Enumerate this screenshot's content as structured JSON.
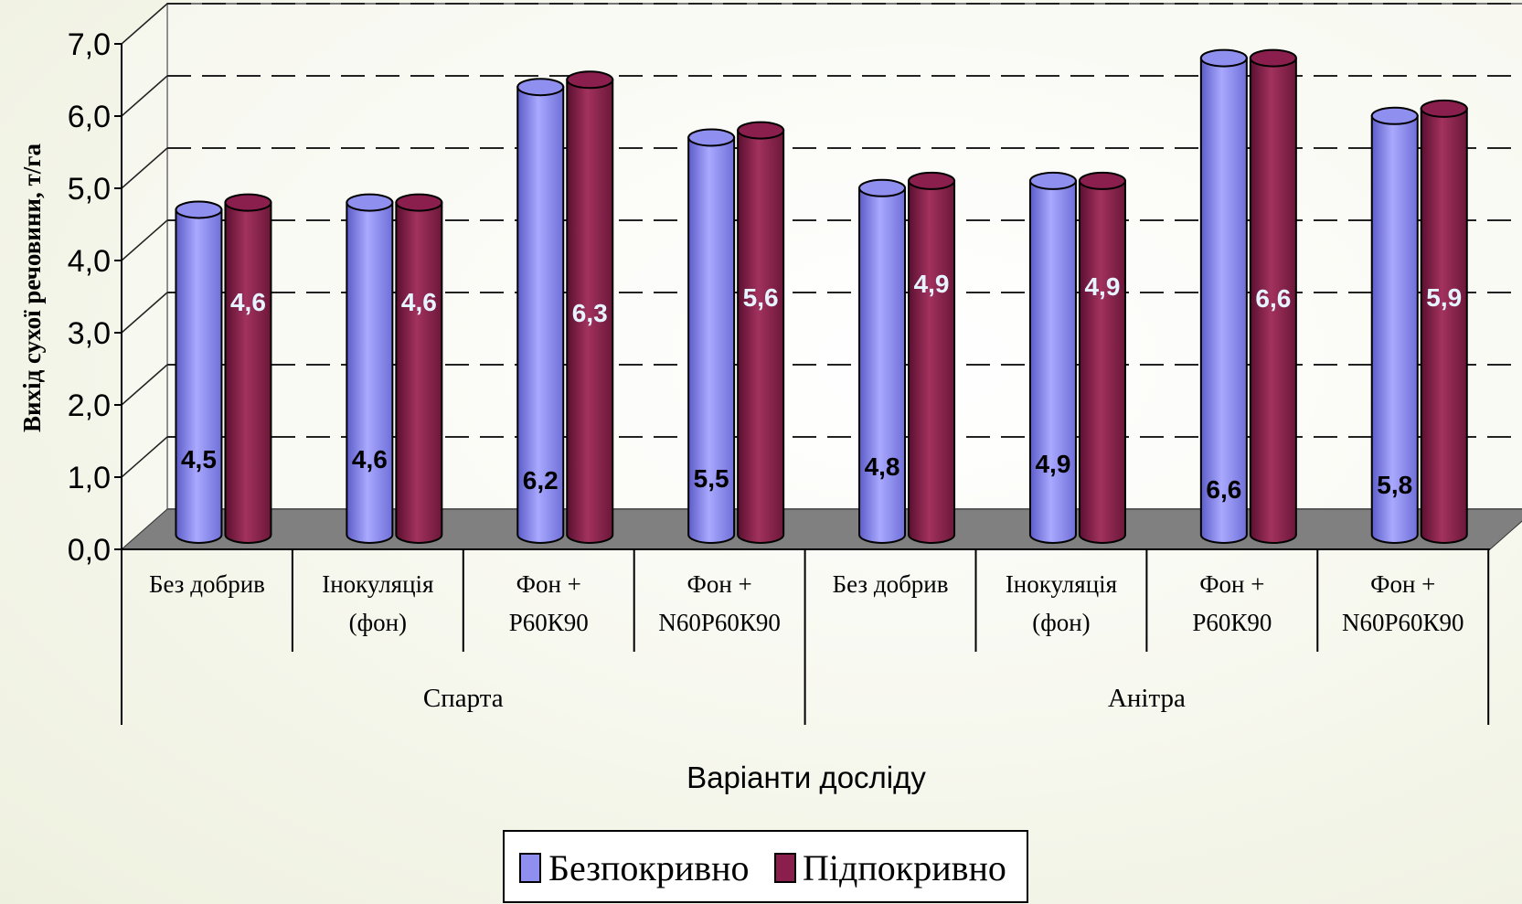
{
  "chart_data": {
    "type": "bar",
    "title": "",
    "xlabel": "Варіанти досліду",
    "ylabel": "Вихід сухої речовини, т/га",
    "ylim": [
      0,
      7
    ],
    "yticks": [
      "0,0",
      "1,0",
      "2,0",
      "3,0",
      "4,0",
      "5,0",
      "6,0",
      "7,0"
    ],
    "groups": [
      {
        "name": "Спарта",
        "categories": [
          [
            "Без добрив"
          ],
          [
            "Інокуляція",
            "(фон)"
          ],
          [
            "Фон +",
            "Р60К90"
          ],
          [
            "Фон +",
            "N60Р60К90"
          ]
        ]
      },
      {
        "name": "Анітра",
        "categories": [
          [
            "Без добрив"
          ],
          [
            "Інокуляція",
            "(фон)"
          ],
          [
            "Фон +",
            "Р60К90"
          ],
          [
            "Фон +",
            "N60Р60К90"
          ]
        ]
      }
    ],
    "series": [
      {
        "name": "Безпокривно",
        "color": "#8f8fef",
        "values": [
          4.5,
          4.6,
          6.2,
          5.5,
          4.8,
          4.9,
          6.6,
          5.8
        ],
        "labels": [
          "4,5",
          "4,6",
          "6,2",
          "5,5",
          "4,8",
          "4,9",
          "6,6",
          "5,8"
        ]
      },
      {
        "name": "Підпокривно",
        "color": "#8a1f4e",
        "values": [
          4.6,
          4.6,
          6.3,
          5.6,
          4.9,
          4.9,
          6.6,
          5.9
        ],
        "labels": [
          "4,6",
          "4,6",
          "6,3",
          "5,6",
          "4,9",
          "4,9",
          "6,6",
          "5,9"
        ]
      }
    ],
    "grid": "dashed",
    "legend": "bottom"
  }
}
